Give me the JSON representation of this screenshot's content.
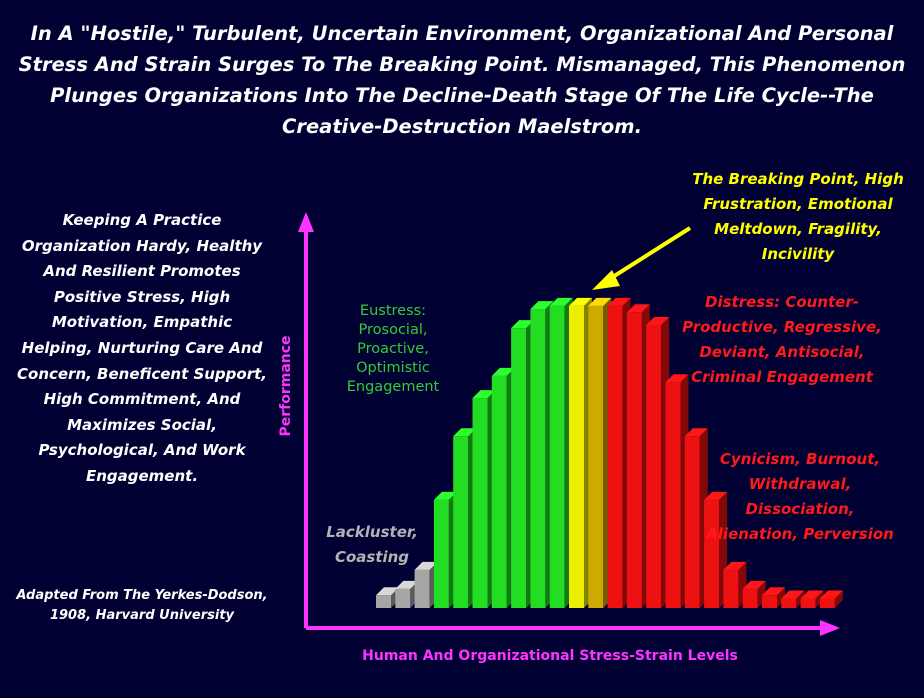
{
  "title": "In A \"Hostile,\" Turbulent, Uncertain Environment, Organizational And Personal Stress And Strain Surges To The Breaking Point. Mismanaged, This Phenomenon Plunges Organizations Into The Decline-Death Stage Of The Life Cycle--The Creative-Destruction Maelstrom.",
  "left_text": "Keeping A Practice Organization Hardy, Healthy And Resilient Promotes Positive Stress, High Motivation, Empathic Helping, Nurturing Care And Concern, Beneficent Support, High Commitment, And Maximizes Social, Psychological, And Work Engagement.",
  "source": "Adapted From The Yerkes-Dodson, 1908, Harvard University",
  "annotations": {
    "eustress": "Eustress: Prosocial, Proactive, Optimistic Engagement",
    "lackluster": "Lackluster, Coasting",
    "breaking_point": "The Breaking Point, High Frustration, Emotional Meltdown, Fragility, Incivility",
    "distress": "Distress: Counter-Productive, Regressive, Deviant, Antisocial, Criminal Engagement",
    "cynicism": "Cynicism, Burnout, Withdrawal, Dissociation, Alienation, Perversion"
  },
  "colors": {
    "background": "#000033",
    "axis": "#ff33ff",
    "gray": "#a6a6a6",
    "green": "#22dd22",
    "yellow": "#eeee00",
    "gold": "#ccaa00",
    "red": "#ee1111",
    "arrow": "#ffff00"
  },
  "chart_data": {
    "type": "bar",
    "xlabel": "Human And Organizational Stress-Strain Levels",
    "ylabel": "Performance",
    "ylim": [
      0,
      100
    ],
    "grid": false,
    "values": [
      4,
      6,
      12,
      34,
      54,
      66,
      73,
      88,
      94,
      95,
      95,
      95,
      95,
      93,
      89,
      71,
      54,
      34,
      12,
      6,
      4,
      3,
      3,
      3
    ],
    "bar_colors": [
      "gray",
      "gray",
      "gray",
      "green",
      "green",
      "green",
      "green",
      "green",
      "green",
      "green",
      "yellow",
      "gold",
      "red",
      "red",
      "red",
      "red",
      "red",
      "red",
      "red",
      "red",
      "red",
      "red",
      "red",
      "red"
    ]
  }
}
